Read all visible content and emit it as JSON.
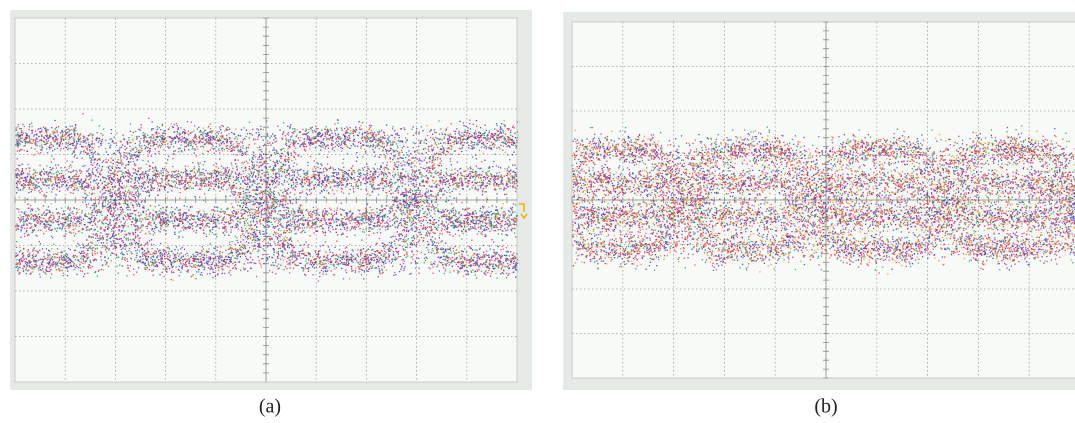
{
  "captions": [
    "(a)",
    "(b)"
  ]
}
